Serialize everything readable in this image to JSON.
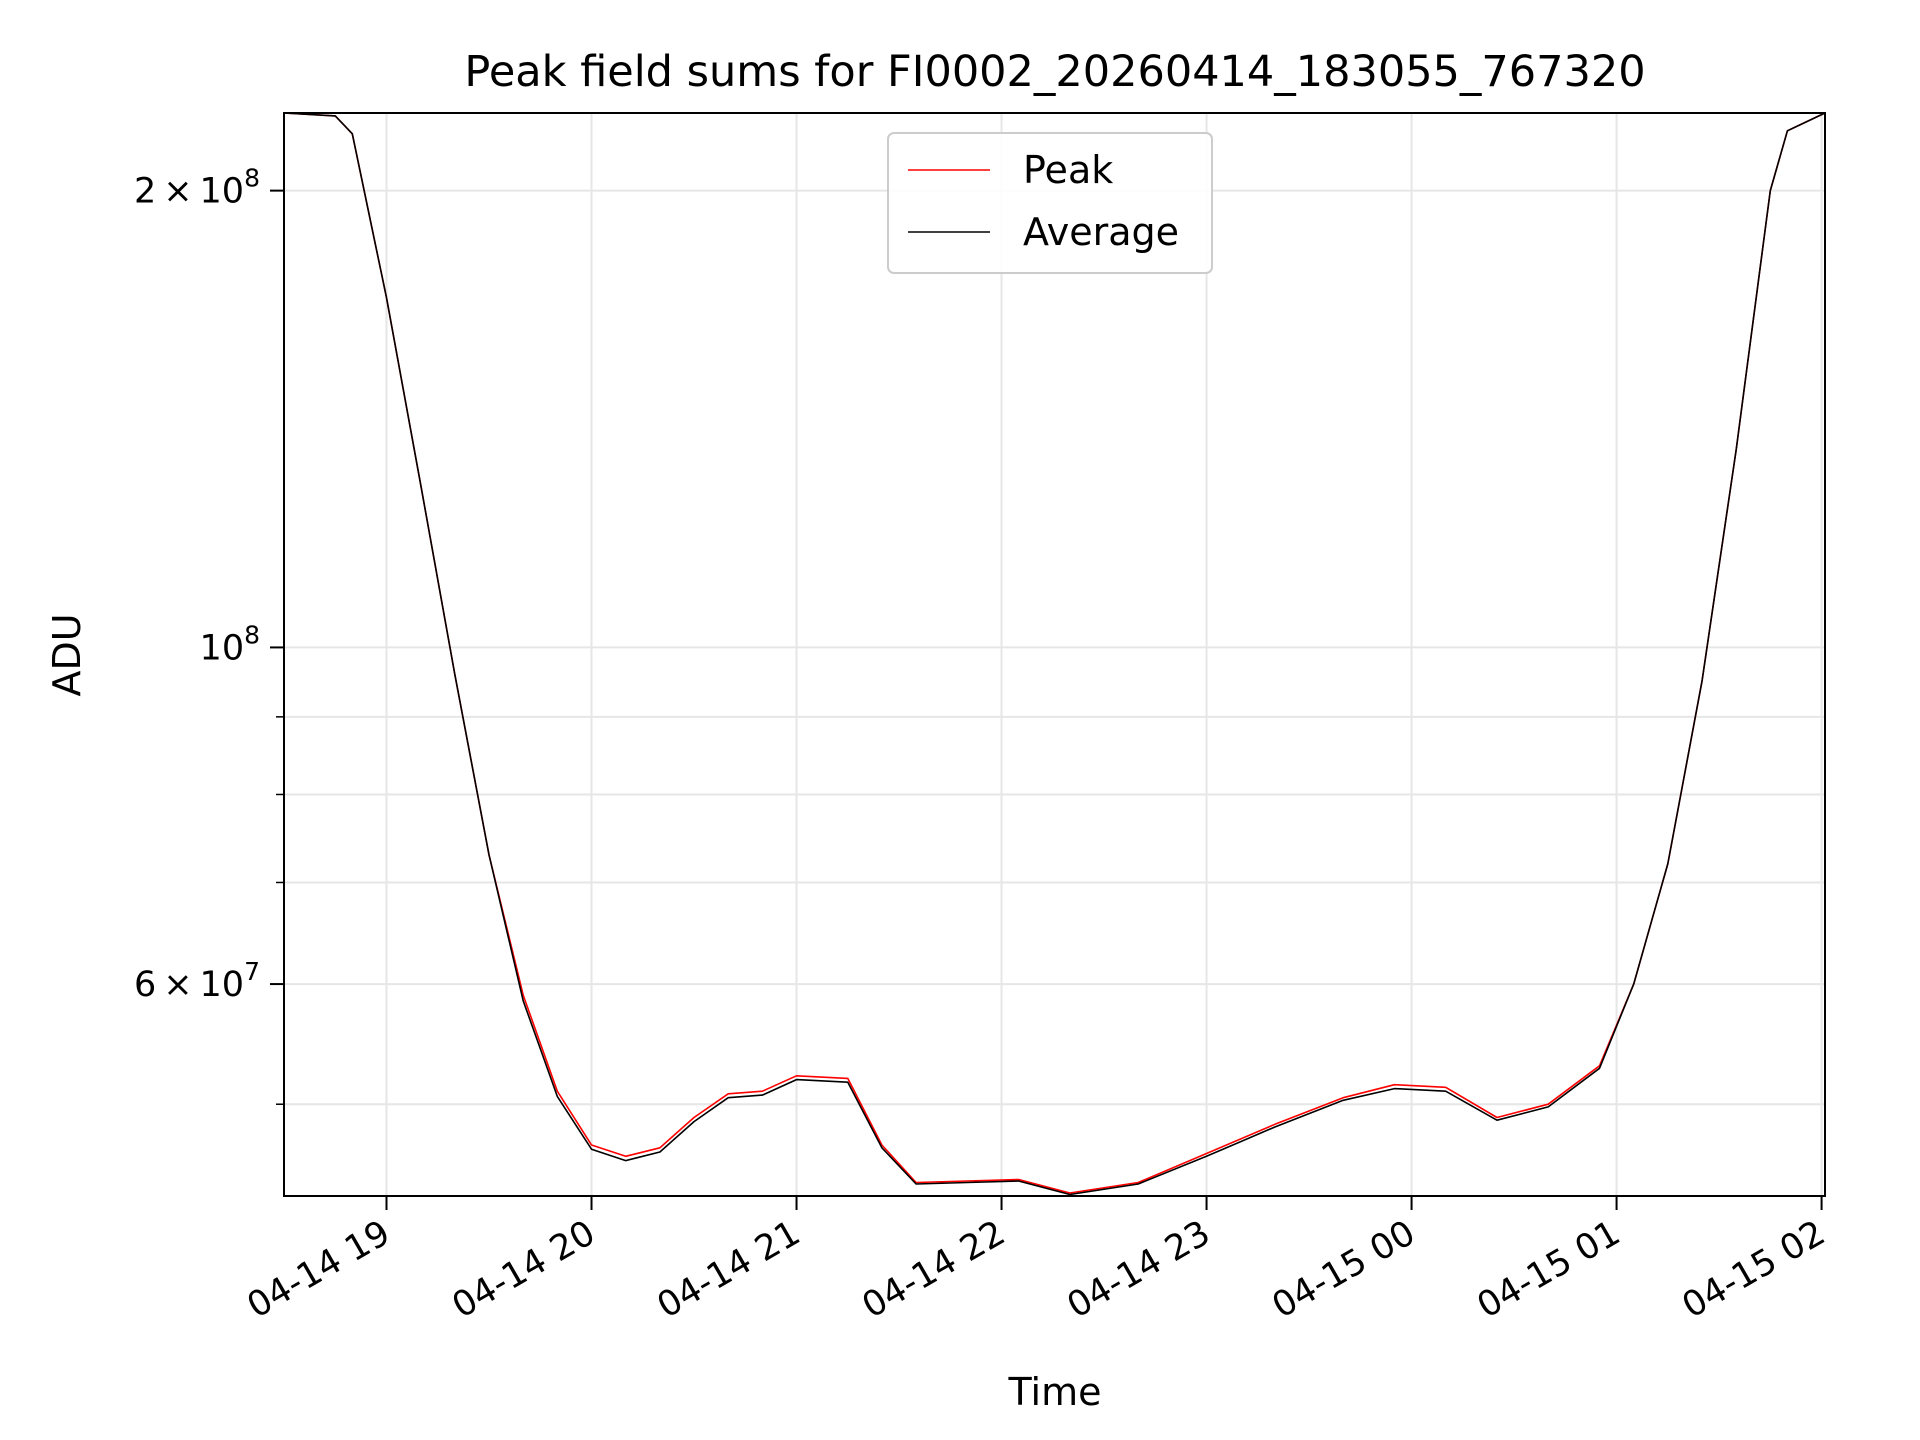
{
  "chart_data": {
    "type": "line",
    "title": "Peak field sums for FI0002_20260414_183055_767320",
    "xlabel": "Time",
    "ylabel": "ADU",
    "yscale": "log",
    "grid": true,
    "legend_placement": "upper center",
    "xlim": [
      "2026-04-14 18:30",
      "2026-04-15 02:01"
    ],
    "ylim": [
      43500000,
      225000000
    ],
    "x_ticks": [
      {
        "t": "2026-04-14 19:00",
        "label": "04-14 19"
      },
      {
        "t": "2026-04-14 20:00",
        "label": "04-14 20"
      },
      {
        "t": "2026-04-14 21:00",
        "label": "04-14 21"
      },
      {
        "t": "2026-04-14 22:00",
        "label": "04-14 22"
      },
      {
        "t": "2026-04-14 23:00",
        "label": "04-14 23"
      },
      {
        "t": "2026-04-15 00:00",
        "label": "04-15 00"
      },
      {
        "t": "2026-04-15 01:00",
        "label": "04-15 01"
      },
      {
        "t": "2026-04-15 02:00",
        "label": "04-15 02"
      }
    ],
    "y_ticks_major": [
      {
        "v": 200000000,
        "mant": "2",
        "exp": "8"
      },
      {
        "v": 100000000,
        "mant": "",
        "exp": "8"
      },
      {
        "v": 60000000,
        "mant": "6",
        "exp": "7"
      }
    ],
    "y_ticks_minor": [
      50000000,
      70000000,
      80000000,
      90000000
    ],
    "series": [
      {
        "name": "Peak",
        "color": "#ff0000",
        "points": [
          [
            "2026-04-14 18:30",
            225000000
          ],
          [
            "2026-04-14 18:45",
            224000000
          ],
          [
            "2026-04-14 18:50",
            218000000
          ],
          [
            "2026-04-14 19:00",
            170000000
          ],
          [
            "2026-04-14 19:10",
            128000000
          ],
          [
            "2026-04-14 19:20",
            96000000
          ],
          [
            "2026-04-14 19:30",
            73000000
          ],
          [
            "2026-04-14 19:40",
            59000000
          ],
          [
            "2026-04-14 19:50",
            51000000
          ],
          [
            "2026-04-14 20:00",
            47000000
          ],
          [
            "2026-04-14 20:10",
            46200000
          ],
          [
            "2026-04-14 20:20",
            46800000
          ],
          [
            "2026-04-14 20:30",
            49000000
          ],
          [
            "2026-04-14 20:40",
            50800000
          ],
          [
            "2026-04-14 20:50",
            51000000
          ],
          [
            "2026-04-14 21:00",
            52200000
          ],
          [
            "2026-04-14 21:15",
            52000000
          ],
          [
            "2026-04-14 21:25",
            47000000
          ],
          [
            "2026-04-14 21:35",
            44400000
          ],
          [
            "2026-04-14 21:50",
            44500000
          ],
          [
            "2026-04-14 22:05",
            44600000
          ],
          [
            "2026-04-14 22:20",
            43700000
          ],
          [
            "2026-04-14 22:40",
            44400000
          ],
          [
            "2026-04-14 23:00",
            46400000
          ],
          [
            "2026-04-14 23:20",
            48500000
          ],
          [
            "2026-04-14 23:40",
            50500000
          ],
          [
            "2026-04-14 23:55",
            51500000
          ],
          [
            "2026-04-15 00:10",
            51300000
          ],
          [
            "2026-04-15 00:25",
            49000000
          ],
          [
            "2026-04-15 00:40",
            50000000
          ],
          [
            "2026-04-15 00:55",
            53000000
          ],
          [
            "2026-04-15 01:05",
            60000000
          ],
          [
            "2026-04-15 01:15",
            72000000
          ],
          [
            "2026-04-15 01:25",
            95000000
          ],
          [
            "2026-04-15 01:35",
            135000000
          ],
          [
            "2026-04-15 01:45",
            200000000
          ],
          [
            "2026-04-15 01:50",
            219000000
          ],
          [
            "2026-04-15 02:01",
            225000000
          ]
        ]
      },
      {
        "name": "Average",
        "color": "#000000",
        "points": [
          [
            "2026-04-14 18:30",
            225000000
          ],
          [
            "2026-04-14 18:45",
            224000000
          ],
          [
            "2026-04-14 18:50",
            218000000
          ],
          [
            "2026-04-14 19:00",
            170000000
          ],
          [
            "2026-04-14 19:10",
            128000000
          ],
          [
            "2026-04-14 19:20",
            96000000
          ],
          [
            "2026-04-14 19:30",
            73000000
          ],
          [
            "2026-04-14 19:40",
            58500000
          ],
          [
            "2026-04-14 19:50",
            50600000
          ],
          [
            "2026-04-14 20:00",
            46700000
          ],
          [
            "2026-04-14 20:10",
            45900000
          ],
          [
            "2026-04-14 20:20",
            46500000
          ],
          [
            "2026-04-14 20:30",
            48700000
          ],
          [
            "2026-04-14 20:40",
            50500000
          ],
          [
            "2026-04-14 20:50",
            50700000
          ],
          [
            "2026-04-14 21:00",
            51900000
          ],
          [
            "2026-04-14 21:15",
            51700000
          ],
          [
            "2026-04-14 21:25",
            46800000
          ],
          [
            "2026-04-14 21:35",
            44300000
          ],
          [
            "2026-04-14 21:50",
            44400000
          ],
          [
            "2026-04-14 22:05",
            44500000
          ],
          [
            "2026-04-14 22:20",
            43600000
          ],
          [
            "2026-04-14 22:40",
            44300000
          ],
          [
            "2026-04-14 23:00",
            46200000
          ],
          [
            "2026-04-14 23:20",
            48300000
          ],
          [
            "2026-04-14 23:40",
            50300000
          ],
          [
            "2026-04-14 23:55",
            51200000
          ],
          [
            "2026-04-15 00:10",
            51000000
          ],
          [
            "2026-04-15 00:25",
            48800000
          ],
          [
            "2026-04-15 00:40",
            49800000
          ],
          [
            "2026-04-15 00:55",
            52800000
          ],
          [
            "2026-04-15 01:05",
            60000000
          ],
          [
            "2026-04-15 01:15",
            72000000
          ],
          [
            "2026-04-15 01:25",
            95000000
          ],
          [
            "2026-04-15 01:35",
            135000000
          ],
          [
            "2026-04-15 01:45",
            200000000
          ],
          [
            "2026-04-15 01:50",
            219000000
          ],
          [
            "2026-04-15 02:01",
            225000000
          ]
        ]
      }
    ]
  }
}
